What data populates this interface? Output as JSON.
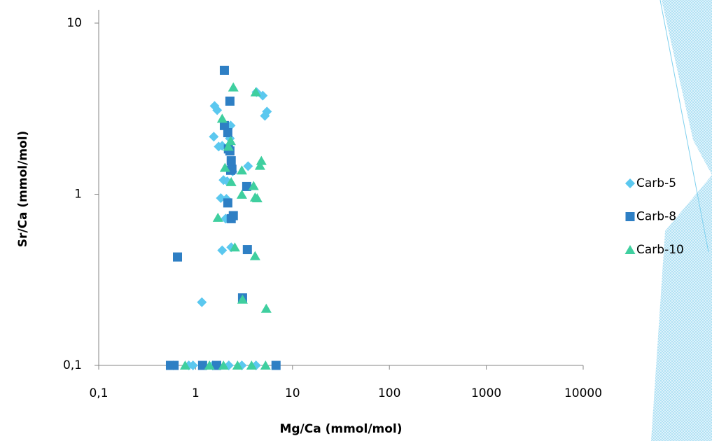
{
  "chart_data": {
    "type": "scatter",
    "x_label": "Mg/Ca (mmol/mol)",
    "y_label": "Sr/Ca (mmol/mol)",
    "log_x": true,
    "log_y": true,
    "legend": "right",
    "xlim": [
      0.1,
      10000
    ],
    "ylim": [
      0.1,
      10
    ],
    "xticks": [
      {
        "value": 0.1,
        "label": "0,1"
      },
      1,
      10,
      100,
      1000,
      10000
    ],
    "yticks": [
      {
        "value": 0.1,
        "label": "0,1"
      },
      1,
      10
    ],
    "series": [
      {
        "name": "Carb-5",
        "color": "#5bc8ef",
        "marker": "diamond",
        "x": [
          1.57,
          1.67,
          1.54,
          1.73,
          2.3,
          2.26,
          1.88,
          2.41,
          1.82,
          2.08,
          3.48,
          2.04,
          1.88,
          2.33,
          1.16,
          4.25,
          4.93,
          5.45,
          5.19,
          1.94,
          2.12,
          0.59,
          0.85,
          0.94,
          1.5,
          2.2,
          3.0,
          4.2
        ],
        "y": [
          3.28,
          3.1,
          2.17,
          1.9,
          2.52,
          2.12,
          1.92,
          1.36,
          0.95,
          0.94,
          1.46,
          0.72,
          0.47,
          0.49,
          0.234,
          3.95,
          3.77,
          3.04,
          2.87,
          1.21,
          1.19,
          0.1,
          0.1,
          0.1,
          0.1,
          0.1,
          0.1,
          0.1
        ]
      },
      {
        "name": "Carb-8",
        "color": "#2e7fc4",
        "marker": "square",
        "x": [
          1.98,
          2.26,
          1.98,
          2.15,
          2.18,
          2.26,
          2.33,
          2.37,
          2.3,
          3.37,
          2.15,
          2.45,
          2.33,
          0.65,
          3.42,
          3.05,
          0.55,
          0.6,
          1.18,
          1.65,
          6.76
        ],
        "y": [
          5.3,
          3.5,
          2.52,
          2.29,
          1.84,
          1.79,
          1.57,
          1.4,
          1.38,
          1.11,
          0.89,
          0.75,
          0.72,
          0.43,
          0.475,
          0.248,
          0.1,
          0.1,
          0.1,
          0.1,
          0.1
        ]
      },
      {
        "name": "Carb-10",
        "color": "#3fcf9f",
        "marker": "triangle",
        "x": [
          2.45,
          4.17,
          1.88,
          2.18,
          2.3,
          2.01,
          3.0,
          4.77,
          4.62,
          2.33,
          3.97,
          3.0,
          4.11,
          4.32,
          1.7,
          2.54,
          4.11,
          3.05,
          5.36,
          0.78,
          1.39,
          1.94,
          2.71,
          3.78,
          5.27
        ],
        "y": [
          4.22,
          3.95,
          2.77,
          1.9,
          2.05,
          1.43,
          1.38,
          1.57,
          1.47,
          1.18,
          1.12,
          0.996,
          0.96,
          0.95,
          0.73,
          0.49,
          0.436,
          0.243,
          0.215,
          0.1,
          0.1,
          0.1,
          0.1,
          0.1,
          0.1
        ]
      }
    ]
  }
}
